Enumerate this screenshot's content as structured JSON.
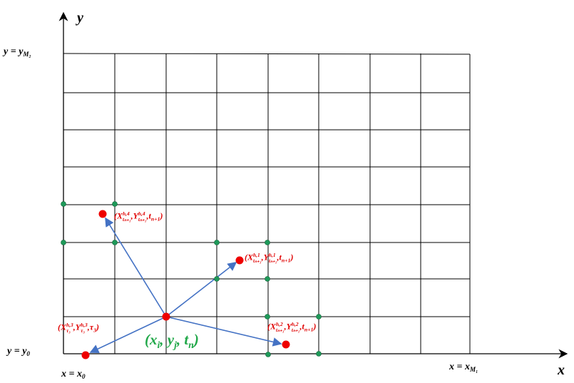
{
  "axes": {
    "y": "y",
    "x": "x"
  },
  "labels": [
    {
      "parts": [
        {
          "text": "y = y",
          "sub": "M₂"
        }
      ]
    },
    {
      "parts": [
        {
          "text": "y = y",
          "sub": "0"
        }
      ]
    },
    {
      "parts": [
        {
          "text": "x = x",
          "sub": "0"
        }
      ]
    },
    {
      "parts": [
        {
          "text": "x = x",
          "sub": "M₁"
        }
      ]
    },
    {
      "parts": [
        {
          "text": "(X",
          "sup": "h,4",
          "sub": "tₙ₊₁"
        },
        {
          "text": ",Y",
          "sup": "h,4",
          "sub": "tₙ₊₁"
        },
        {
          "text": ",t",
          "sub": "n+1"
        },
        {
          "text": ")"
        }
      ]
    },
    {
      "parts": [
        {
          "text": "(X",
          "sup": "h,1",
          "sub": "tₙ₊₁"
        },
        {
          "text": ",Y",
          "sup": "h,1",
          "sub": "tₙ₊₁"
        },
        {
          "text": ",t",
          "sub": "n+1"
        },
        {
          "text": ")"
        }
      ]
    },
    {
      "parts": [
        {
          "text": "(X",
          "sup": "h,2",
          "sub": "tₙ₊₁"
        },
        {
          "text": ",Y",
          "sup": "h,2",
          "sub": "tₙ₊₁"
        },
        {
          "text": ",t",
          "sub": "n+1"
        },
        {
          "text": ")"
        }
      ]
    },
    {
      "parts": [
        {
          "text": "(X",
          "sup": "h,3",
          "sub": "τ₃"
        },
        {
          "text": ",Y",
          "sup": "h,3",
          "sub": "τ₃"
        },
        {
          "text": ",τ",
          "sub": "3"
        },
        {
          "text": ")"
        }
      ]
    },
    {
      "parts": [
        {
          "text": "(x",
          "sub": "i"
        },
        {
          "text": ", y",
          "sub": "j"
        },
        {
          "text": ", t",
          "sub": "n"
        },
        {
          "text": ")"
        }
      ]
    }
  ]
}
